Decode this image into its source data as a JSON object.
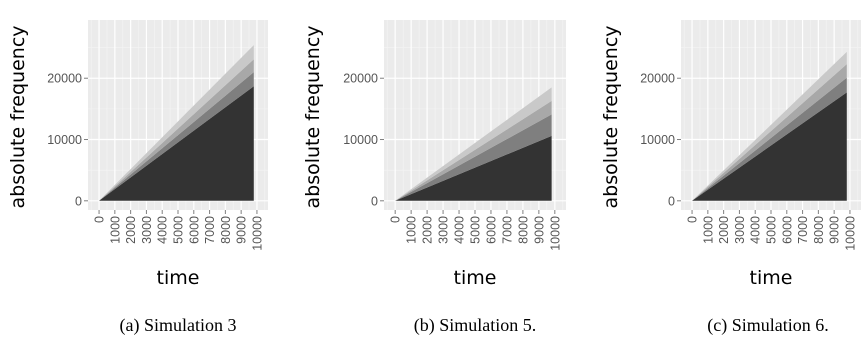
{
  "chart_data": [
    {
      "type": "area",
      "caption": "(a) Simulation 3",
      "xlabel": "time",
      "ylabel": "absolute frequency",
      "x_ticks": [
        "0",
        "1000",
        "2000",
        "3000",
        "4000",
        "5000",
        "6000",
        "7000",
        "8000",
        "9000",
        "10000"
      ],
      "y_ticks": [
        "0",
        "10000",
        "20000"
      ],
      "x_range": [
        -700,
        10700
      ],
      "y_range": [
        -1500,
        29500
      ],
      "stacked": true,
      "x": [
        0,
        9800
      ],
      "series": [
        {
          "values": [
            0,
            18700
          ],
          "color": "#333333"
        },
        {
          "values": [
            0,
            2300
          ],
          "color": "#7f7f7f"
        },
        {
          "values": [
            0,
            2100
          ],
          "color": "#a8a8a8"
        },
        {
          "values": [
            0,
            2300
          ],
          "color": "#c9c9c9"
        }
      ]
    },
    {
      "type": "area",
      "caption": "(b) Simulation 5.",
      "xlabel": "time",
      "ylabel": "absolute frequency",
      "x_ticks": [
        "0",
        "1000",
        "2000",
        "3000",
        "4000",
        "5000",
        "6000",
        "7000",
        "8000",
        "9000",
        "10000"
      ],
      "y_ticks": [
        "0",
        "10000",
        "20000"
      ],
      "x_range": [
        -700,
        10700
      ],
      "y_range": [
        -1500,
        29500
      ],
      "stacked": true,
      "x": [
        0,
        9800
      ],
      "series": [
        {
          "values": [
            0,
            10600
          ],
          "color": "#333333"
        },
        {
          "values": [
            0,
            3500
          ],
          "color": "#7f7f7f"
        },
        {
          "values": [
            0,
            2200
          ],
          "color": "#a8a8a8"
        },
        {
          "values": [
            0,
            2200
          ],
          "color": "#c9c9c9"
        }
      ]
    },
    {
      "type": "area",
      "caption": "(c) Simulation 6.",
      "xlabel": "time",
      "ylabel": "absolute frequency",
      "x_ticks": [
        "0",
        "1000",
        "2000",
        "3000",
        "4000",
        "5000",
        "6000",
        "7000",
        "8000",
        "9000",
        "10000"
      ],
      "y_ticks": [
        "0",
        "10000",
        "20000"
      ],
      "x_range": [
        -700,
        10700
      ],
      "y_range": [
        -1500,
        29500
      ],
      "stacked": true,
      "x": [
        0,
        9800
      ],
      "series": [
        {
          "values": [
            0,
            17700
          ],
          "color": "#333333"
        },
        {
          "values": [
            0,
            2400
          ],
          "color": "#7f7f7f"
        },
        {
          "values": [
            0,
            2200
          ],
          "color": "#a8a8a8"
        },
        {
          "values": [
            0,
            2000
          ],
          "color": "#c9c9c9"
        }
      ]
    }
  ]
}
